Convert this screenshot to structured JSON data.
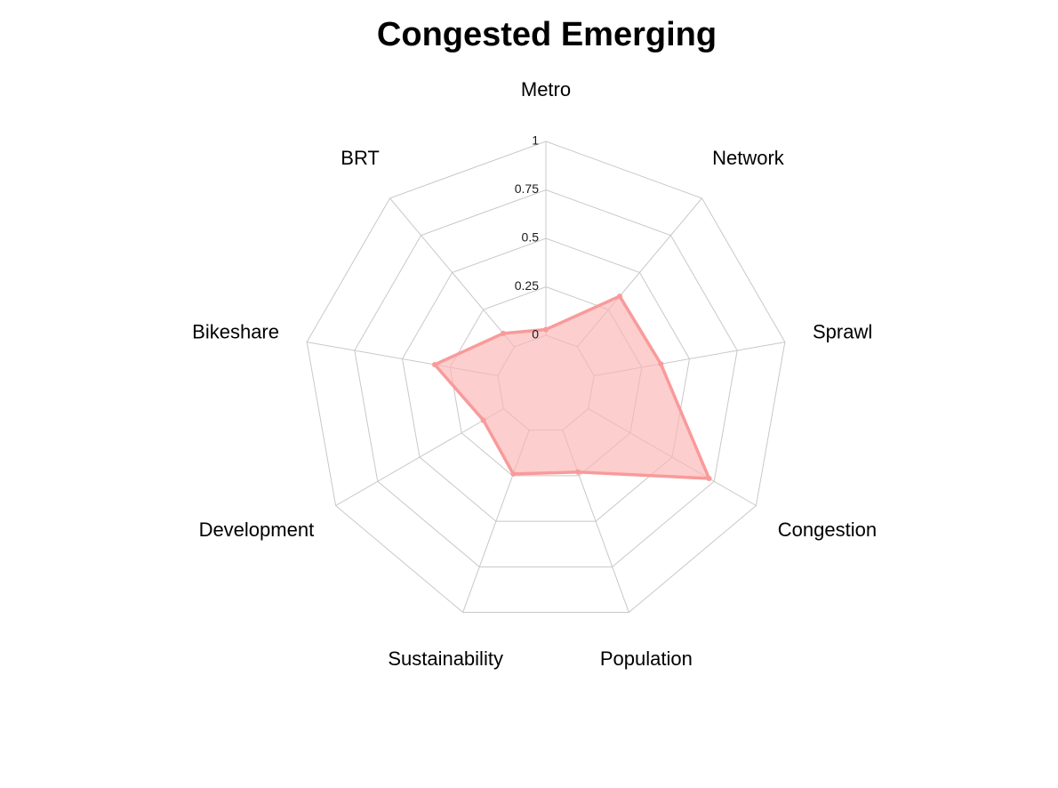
{
  "chart_data": {
    "type": "radar",
    "title": "Congested Emerging",
    "axes": [
      "Metro",
      "Network",
      "Sprawl",
      "Congestion",
      "Population",
      "Sustainability",
      "Development",
      "Bikeshare",
      "BRT"
    ],
    "radial_ticks": [
      "0",
      "0.25",
      "0.5",
      "0.75",
      "1"
    ],
    "rlim": [
      0,
      1
    ],
    "series": [
      {
        "values": [
          0.03,
          0.34,
          0.35,
          0.72,
          0.23,
          0.24,
          0.12,
          0.33,
          0.09
        ]
      }
    ],
    "grid": true,
    "colors": {
      "series_line": "#f99a9a",
      "series_fill": "#fbb4b4",
      "grid": "#c8c8c8"
    }
  }
}
